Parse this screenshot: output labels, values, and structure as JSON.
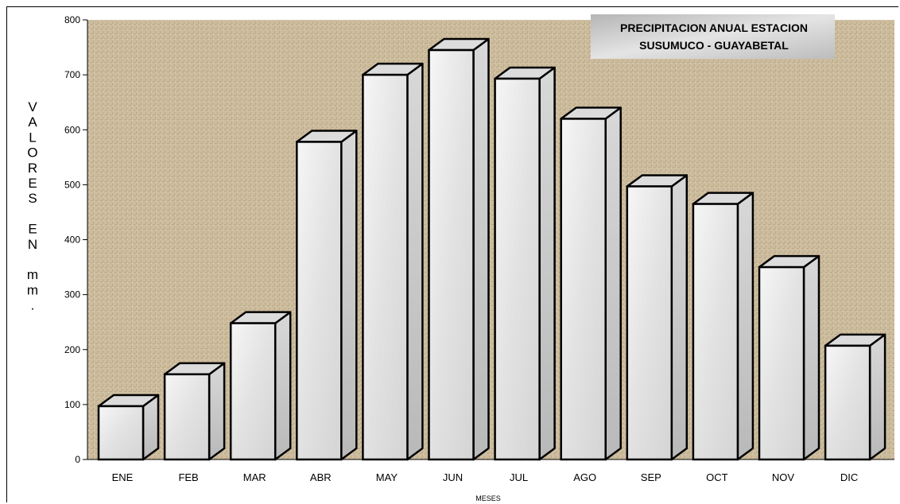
{
  "chart_data": {
    "type": "bar",
    "title_lines": [
      "PRECIPITACION ANUAL ESTACION",
      "SUSUMUCO - GUAYABETAL"
    ],
    "xlabel": "MESES",
    "ylabel_lines": [
      "V",
      "A",
      "L",
      "O",
      "R",
      "E",
      "S",
      "",
      "E",
      "N",
      "",
      "m",
      "m",
      "."
    ],
    "categories": [
      "ENE",
      "FEB",
      "MAR",
      "ABR",
      "MAY",
      "JUN",
      "JUL",
      "AGO",
      "SEP",
      "OCT",
      "NOV",
      "DIC"
    ],
    "values": [
      97,
      155,
      248,
      578,
      700,
      745,
      693,
      620,
      497,
      465,
      350,
      207
    ],
    "ylim": [
      0,
      800
    ],
    "yticks": [
      0,
      100,
      200,
      300,
      400,
      500,
      600,
      700,
      800
    ],
    "grid": false,
    "colors": {
      "plot_background": "#cdbd9f",
      "bar_front": "#eeeeee",
      "bar_side": "#c9c9c9",
      "bar_top": "#dcdcdc",
      "title_box": "#c8c8c8"
    }
  }
}
